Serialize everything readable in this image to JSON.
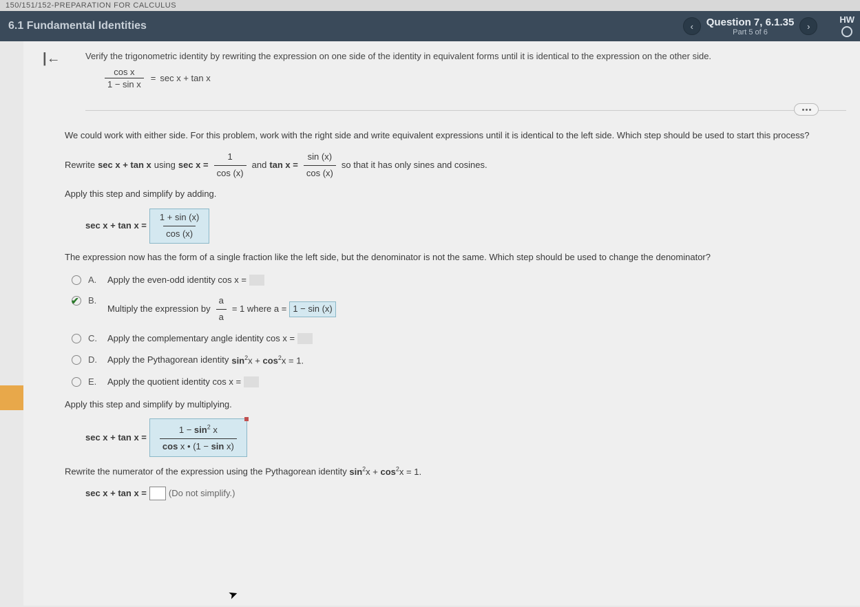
{
  "crumb": "150/151/152-PREPARATION FOR CALCULUS",
  "header": {
    "section": "6.1 Fundamental Identities",
    "question": "Question 7, 6.1.35",
    "part": "Part 5 of 6",
    "hw": "HW"
  },
  "problem": {
    "instruction": "Verify the trigonometric identity by rewriting the expression on one side of the identity in equivalent forms until it is identical to the expression on the other side.",
    "lhs_num": "cos x",
    "lhs_den": "1 − sin x",
    "eq": "=",
    "rhs": "sec x + tan x"
  },
  "step1": {
    "intro": "We could work with either side. For this problem, work with the right side and write equivalent expressions until it is identical to the left side. Which step should be used to start this process?",
    "rewrite_a": "Rewrite ",
    "expr1": "sec x + tan x",
    "using": " using ",
    "sec": "sec x =",
    "sec_num": "1",
    "sec_den": "cos (x)",
    "and": " and ",
    "tan": "tan x =",
    "tan_num": "sin (x)",
    "tan_den": "cos (x)",
    "tail": " so that it has only sines and cosines."
  },
  "step2": {
    "apply": "Apply this step and simplify by adding.",
    "lhs": "sec x + tan x =",
    "num": "1 + sin (x)",
    "den": "cos (x)"
  },
  "step3": {
    "text": "The expression now has the form of a single fraction like the left side, but the denominator is not the same. Which step should be used to change the denominator?"
  },
  "options": {
    "A": {
      "letter": "A.",
      "text": "Apply the even-odd identity cos x ="
    },
    "B": {
      "letter": "B.",
      "text_a": "Multiply the expression by ",
      "frac_num": "a",
      "frac_den": "a",
      "text_b": " = 1 where a = ",
      "val": "1 − sin (x)"
    },
    "C": {
      "letter": "C.",
      "text": "Apply the complementary angle identity cos x ="
    },
    "D": {
      "letter": "D.",
      "text_a": "Apply the Pythagorean identity ",
      "expr": "sin ²x + cos ²x = 1."
    },
    "E": {
      "letter": "E.",
      "text": "Apply the quotient identity cos x ="
    }
  },
  "step4": {
    "apply": "Apply this step and simplify by multiplying.",
    "lhs": "sec x + tan x =",
    "num": "1 − sin ² x",
    "den": "cos x • (1 − sin x)"
  },
  "step5": {
    "text_a": "Rewrite the numerator of the expression using the Pythagorean identity ",
    "expr": "sin ²x + cos ²x = 1."
  },
  "final": {
    "lhs": "sec x + tan x =",
    "hint": "(Do not simplify.)"
  },
  "colors": {
    "header_bg": "#3a4a5a",
    "box_bg": "#d4e8f0",
    "orange": "#e8a84a"
  }
}
